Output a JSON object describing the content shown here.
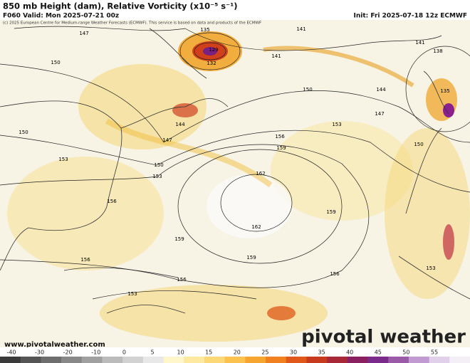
{
  "header": {
    "title": "850 mb Height (dam), Relative Vorticity (x10⁻⁵ s⁻¹)",
    "valid": "F060 Valid: Mon 2025-07-21 00z",
    "init": "Init: Fri 2025-07-18 12z ECMWF",
    "copyright": "(c) 2025 European Centre for Medium-range Weather Forecasts (ECMWF). This service is based on data and products of the ECMWF"
  },
  "map": {
    "contour_labels": [
      "147",
      "135",
      "141",
      "141",
      "129",
      "132",
      "141",
      "138",
      "135",
      "150",
      "150",
      "144",
      "147",
      "150",
      "153",
      "156",
      "147",
      "144",
      "150",
      "159",
      "153",
      "153",
      "162",
      "150",
      "156",
      "159",
      "162",
      "159",
      "156",
      "159",
      "156",
      "156",
      "153",
      "153"
    ]
  },
  "footer": {
    "website": "www.pivotalweather.com",
    "logo": "pivotal weather"
  },
  "colorbar": {
    "ticks": [
      "-40",
      "-30",
      "-20",
      "-10",
      "0",
      "5",
      "10",
      "15",
      "20",
      "25",
      "30",
      "35",
      "40",
      "45",
      "50",
      "55"
    ]
  }
}
